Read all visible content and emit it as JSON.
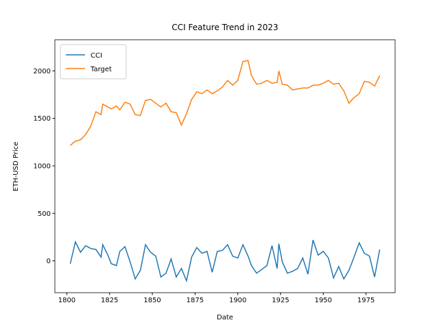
{
  "chart_data": {
    "type": "line",
    "title": "CCI Feature Trend in 2023",
    "x_label": "Date",
    "y_label": "ETH-USD Price",
    "x": [
      1802,
      1805,
      1808,
      1811,
      1814,
      1817,
      1820,
      1821,
      1824,
      1826,
      1829,
      1831,
      1834,
      1837,
      1840,
      1843,
      1846,
      1849,
      1852,
      1855,
      1858,
      1861,
      1864,
      1867,
      1870,
      1873,
      1876,
      1879,
      1882,
      1885,
      1888,
      1891,
      1894,
      1897,
      1900,
      1903,
      1906,
      1908,
      1911,
      1914,
      1917,
      1920,
      1923,
      1924,
      1926,
      1929,
      1932,
      1935,
      1938,
      1941,
      1944,
      1947,
      1950,
      1953,
      1956,
      1959,
      1962,
      1965,
      1968,
      1971,
      1974,
      1977,
      1980,
      1983
    ],
    "series": [
      {
        "name": "CCI",
        "color": "#1f77b4",
        "values": [
          -30,
          200,
          90,
          160,
          130,
          120,
          40,
          170,
          60,
          -30,
          -50,
          100,
          150,
          -10,
          -190,
          -100,
          170,
          90,
          50,
          -170,
          -130,
          20,
          -170,
          -80,
          -210,
          40,
          140,
          80,
          100,
          -120,
          100,
          110,
          170,
          50,
          30,
          170,
          50,
          -50,
          -130,
          -90,
          -50,
          160,
          -80,
          180,
          -10,
          -130,
          -110,
          -80,
          30,
          -140,
          220,
          60,
          100,
          30,
          -180,
          -60,
          -190,
          -100,
          40,
          190,
          80,
          50,
          -170,
          120
        ]
      },
      {
        "name": "Target",
        "color": "#ff7f0e",
        "values": [
          1215,
          1260,
          1275,
          1330,
          1420,
          1570,
          1540,
          1650,
          1620,
          1600,
          1630,
          1590,
          1670,
          1650,
          1540,
          1530,
          1690,
          1700,
          1660,
          1620,
          1660,
          1570,
          1560,
          1430,
          1550,
          1700,
          1780,
          1760,
          1800,
          1760,
          1790,
          1830,
          1900,
          1850,
          1900,
          2100,
          2110,
          1950,
          1860,
          1870,
          1900,
          1870,
          1880,
          2000,
          1860,
          1850,
          1800,
          1810,
          1820,
          1820,
          1850,
          1850,
          1870,
          1900,
          1860,
          1870,
          1790,
          1660,
          1720,
          1760,
          1890,
          1880,
          1840,
          1950
        ]
      }
    ],
    "xlim": [
      1793,
      1992
    ],
    "ylim": [
      -335,
      2328
    ],
    "xticks": [
      1800,
      1825,
      1850,
      1875,
      1900,
      1925,
      1950,
      1975
    ],
    "yticks": [
      0,
      500,
      1000,
      1500,
      2000
    ],
    "legend": "upper left"
  }
}
